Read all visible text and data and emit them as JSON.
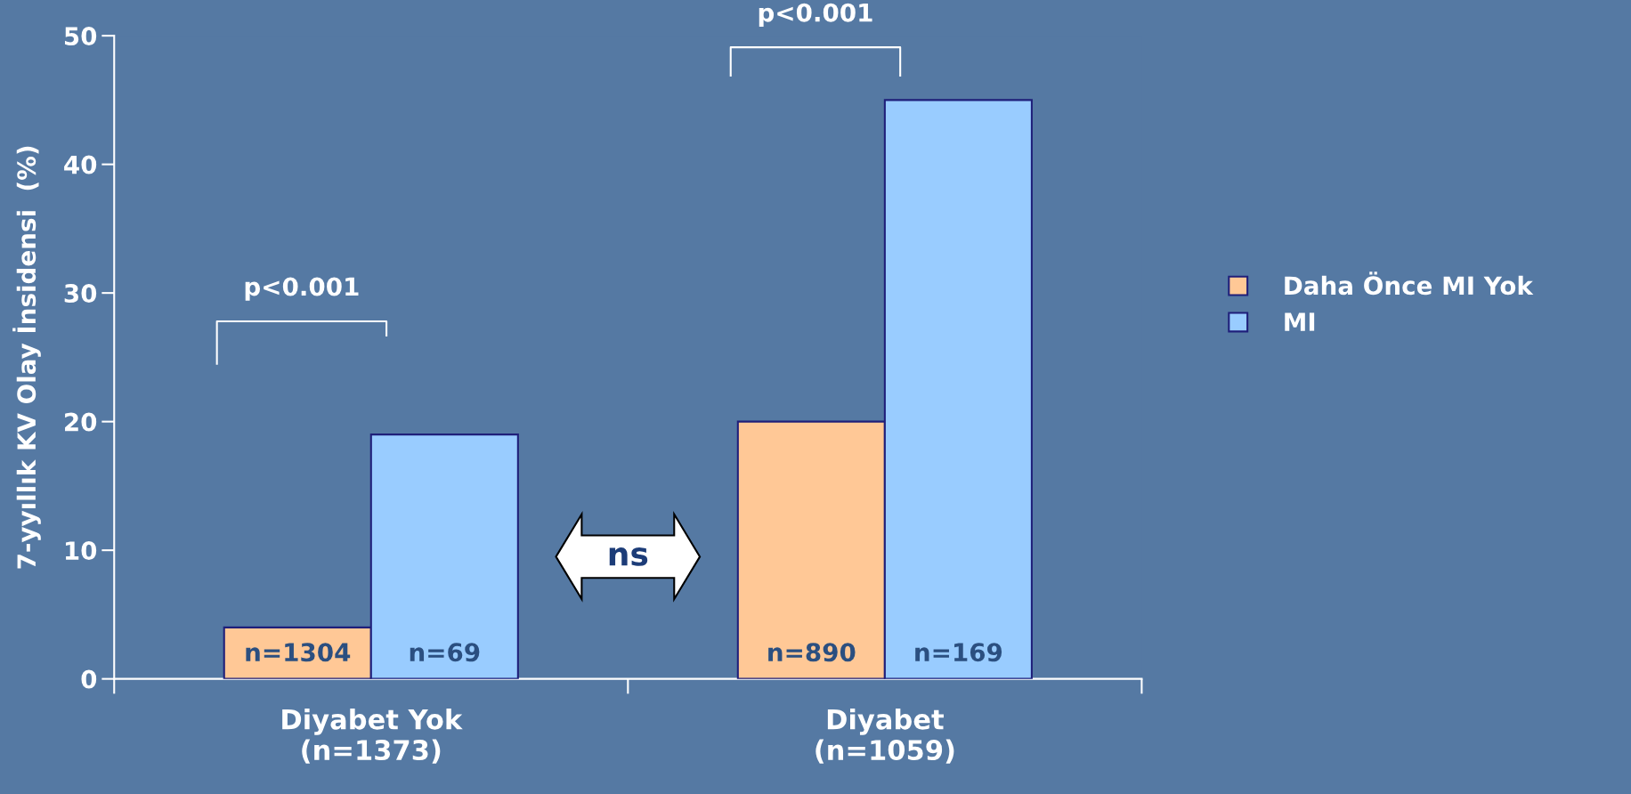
{
  "chart_data": {
    "type": "bar",
    "ylabel": "7-yyıllık KV Olay İnsidensi  (%)",
    "categories": [
      "Diyabet Yok\n(n=1373)",
      "Diyabet\n(n=1059)"
    ],
    "series": [
      {
        "name": "Daha Önce MI Yok",
        "color": "#ffc896",
        "values": [
          4,
          20
        ]
      },
      {
        "name": "MI",
        "color": "#99ccff",
        "values": [
          19,
          45
        ]
      }
    ],
    "ylim": [
      0,
      50
    ],
    "yticks": [
      0,
      10,
      20,
      30,
      40,
      50
    ],
    "grid": false,
    "legend": "right",
    "annotations": [
      "p<0.001",
      "p<0.001",
      "ns",
      "n=1304",
      "n=69",
      "n=890",
      "n=169"
    ]
  }
}
